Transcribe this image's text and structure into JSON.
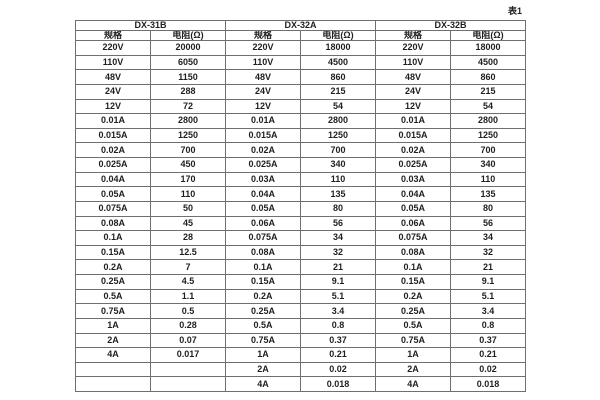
{
  "caption": "表1",
  "colors": {
    "background": "#ffffff",
    "border": "#6f6f6f",
    "text": "#1f1f1f"
  },
  "table": {
    "groups": [
      {
        "name": "DX-31B",
        "col_headers": [
          "规格",
          "电阻(Ω)"
        ]
      },
      {
        "name": "DX-32A",
        "col_headers": [
          "规格",
          "电阻(Ω)"
        ]
      },
      {
        "name": "DX-32B",
        "col_headers": [
          "规格",
          "电阻(Ω)"
        ]
      }
    ],
    "rows": [
      [
        "220V",
        "20000",
        "220V",
        "18000",
        "220V",
        "18000"
      ],
      [
        "110V",
        "6050",
        "110V",
        "4500",
        "110V",
        "4500"
      ],
      [
        "48V",
        "1150",
        "48V",
        "860",
        "48V",
        "860"
      ],
      [
        "24V",
        "288",
        "24V",
        "215",
        "24V",
        "215"
      ],
      [
        "12V",
        "72",
        "12V",
        "54",
        "12V",
        "54"
      ],
      [
        "0.01A",
        "2800",
        "0.01A",
        "2800",
        "0.01A",
        "2800"
      ],
      [
        "0.015A",
        "1250",
        "0.015A",
        "1250",
        "0.015A",
        "1250"
      ],
      [
        "0.02A",
        "700",
        "0.02A",
        "700",
        "0.02A",
        "700"
      ],
      [
        "0.025A",
        "450",
        "0.025A",
        "340",
        "0.025A",
        "340"
      ],
      [
        "0.04A",
        "170",
        "0.03A",
        "110",
        "0.03A",
        "110"
      ],
      [
        "0.05A",
        "110",
        "0.04A",
        "135",
        "0.04A",
        "135"
      ],
      [
        "0.075A",
        "50",
        "0.05A",
        "80",
        "0.05A",
        "80"
      ],
      [
        "0.08A",
        "45",
        "0.06A",
        "56",
        "0.06A",
        "56"
      ],
      [
        "0.1A",
        "28",
        "0.075A",
        "34",
        "0.075A",
        "34"
      ],
      [
        "0.15A",
        "12.5",
        "0.08A",
        "32",
        "0.08A",
        "32"
      ],
      [
        "0.2A",
        "7",
        "0.1A",
        "21",
        "0.1A",
        "21"
      ],
      [
        "0.25A",
        "4.5",
        "0.15A",
        "9.1",
        "0.15A",
        "9.1"
      ],
      [
        "0.5A",
        "1.1",
        "0.2A",
        "5.1",
        "0.2A",
        "5.1"
      ],
      [
        "0.75A",
        "0.5",
        "0.25A",
        "3.4",
        "0.25A",
        "3.4"
      ],
      [
        "1A",
        "0.28",
        "0.5A",
        "0.8",
        "0.5A",
        "0.8"
      ],
      [
        "2A",
        "0.07",
        "0.75A",
        "0.37",
        "0.75A",
        "0.37"
      ],
      [
        "4A",
        "0.017",
        "1A",
        "0.21",
        "1A",
        "0.21"
      ],
      [
        "",
        "",
        "2A",
        "0.02",
        "2A",
        "0.02"
      ],
      [
        "",
        "",
        "4A",
        "0.018",
        "4A",
        "0.018"
      ]
    ]
  }
}
